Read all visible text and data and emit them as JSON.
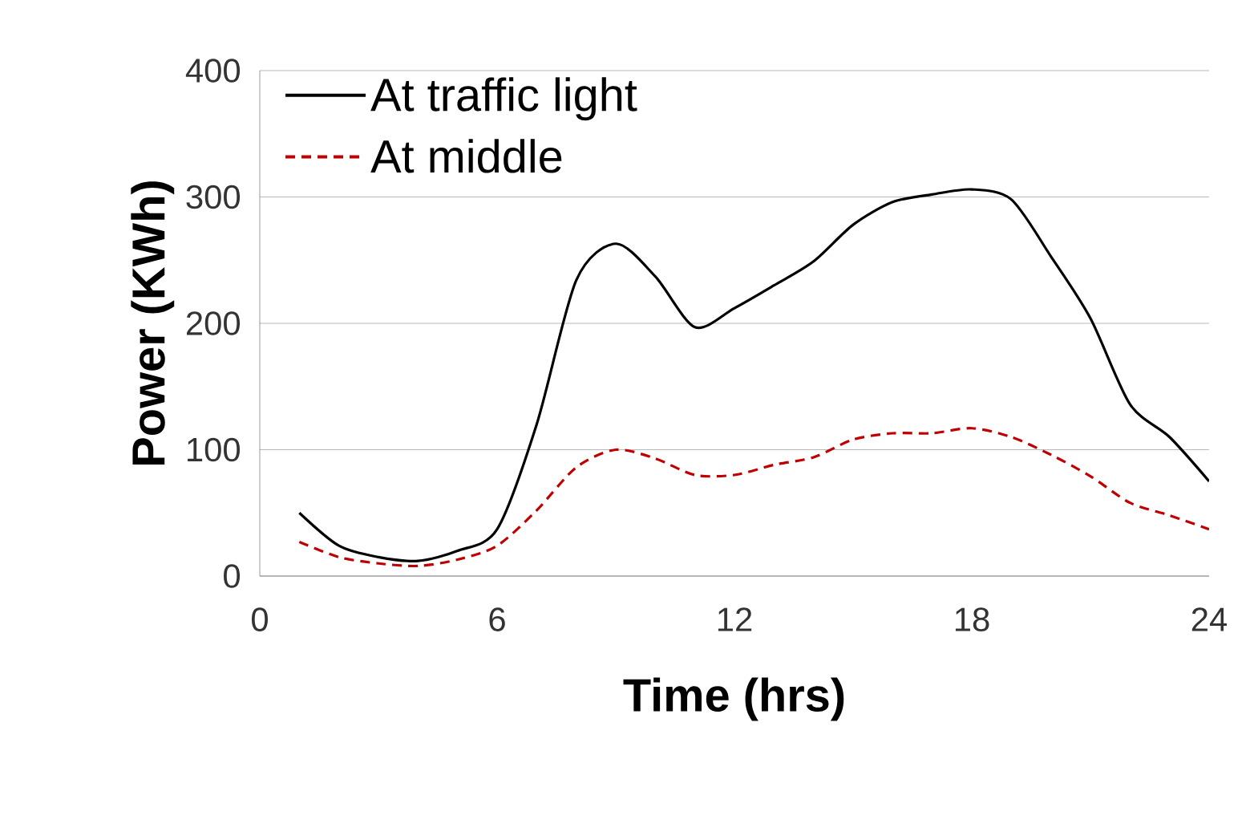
{
  "chart_data": {
    "type": "line",
    "xlabel": "Time (hrs)",
    "ylabel": "Power (KWh)",
    "xlim": [
      0,
      24
    ],
    "xticks": [
      0,
      6,
      12,
      18,
      24
    ],
    "ylim": [
      0,
      400
    ],
    "yticks": [
      0,
      100,
      200,
      300,
      400
    ],
    "grid": "y",
    "legend": "top left",
    "marker": "none",
    "x": [
      1,
      2,
      3,
      4,
      5,
      6,
      7,
      8,
      9,
      10,
      11,
      12,
      13,
      14,
      15,
      16,
      17,
      18,
      19,
      20,
      21,
      22,
      23,
      24
    ],
    "series": [
      {
        "name": "At traffic light",
        "color": "#000000",
        "line_style": "solid",
        "values": [
          50,
          24,
          15,
          12,
          20,
          37,
          120,
          234,
          263,
          237,
          197,
          212,
          230,
          249,
          278,
          296,
          302,
          306,
          298,
          253,
          204,
          136,
          110,
          75
        ]
      },
      {
        "name": "At middle",
        "color": "#c00000",
        "line_style": "dashed",
        "values": [
          27,
          15,
          10,
          8,
          13,
          24,
          52,
          86,
          100,
          93,
          80,
          80,
          88,
          94,
          108,
          113,
          113,
          117,
          110,
          96,
          79,
          58,
          48,
          37
        ]
      }
    ]
  }
}
